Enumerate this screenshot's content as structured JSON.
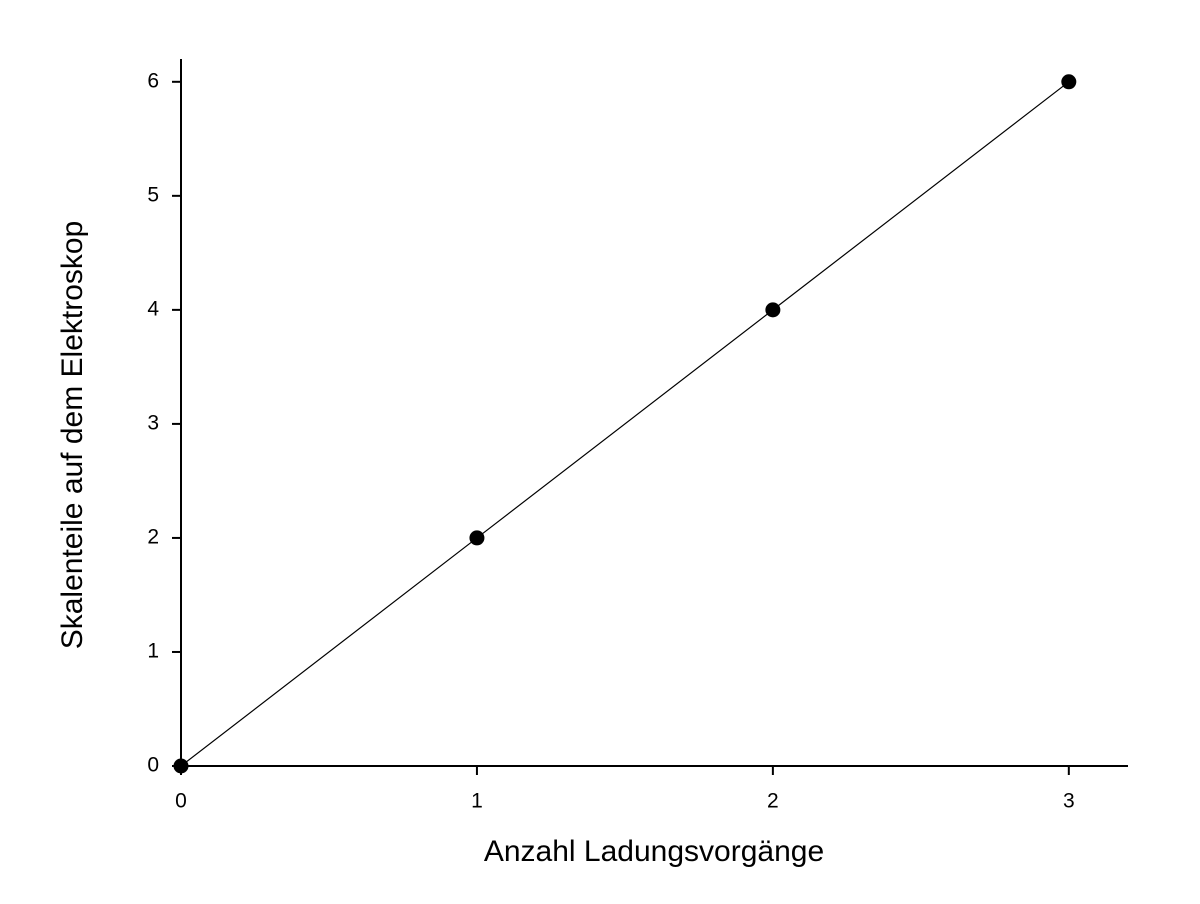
{
  "chart_data": {
    "type": "line",
    "x_label": "Anzahl Ladungsvorgänge",
    "y_label": "Skalenteile auf dem Elektroskop",
    "x": [
      0,
      1,
      2,
      3
    ],
    "series": [
      {
        "color": "#000000",
        "values": [
          0,
          2,
          4,
          6
        ]
      }
    ],
    "xlim": [
      0,
      3.2
    ],
    "xticks": [
      0,
      1,
      2,
      3
    ],
    "ylim": [
      0,
      6.2
    ],
    "yticks": [
      0,
      1,
      2,
      3,
      4,
      5,
      6
    ],
    "grid": false,
    "markers": true
  }
}
